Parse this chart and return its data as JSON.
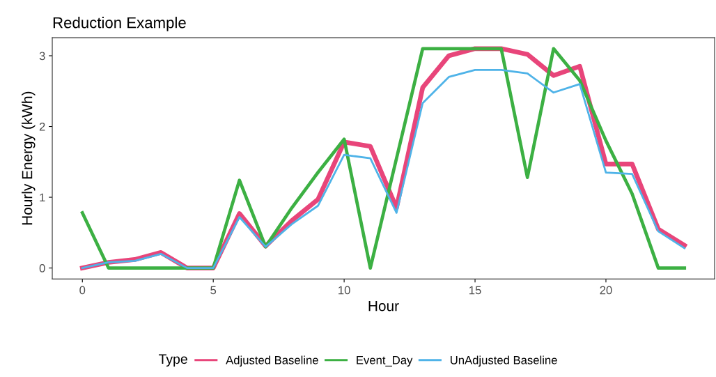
{
  "chart_data": {
    "type": "line",
    "title": "Reduction Example",
    "xlabel": "Hour",
    "ylabel": "Hourly Energy (kWh)",
    "legend_title": "Type",
    "x": [
      0,
      1,
      2,
      3,
      4,
      5,
      6,
      7,
      8,
      9,
      10,
      11,
      12,
      13,
      14,
      15,
      16,
      17,
      18,
      19,
      20,
      21,
      22,
      23
    ],
    "series": [
      {
        "name": "Adjusted Baseline",
        "color": "#e8457a",
        "values": [
          0,
          0.08,
          0.12,
          0.22,
          0,
          0,
          0.77,
          0.31,
          0.67,
          0.97,
          1.78,
          1.72,
          0.85,
          2.55,
          3.0,
          3.1,
          3.1,
          3.02,
          2.72,
          2.85,
          1.47,
          1.47,
          0.55,
          0.32
        ]
      },
      {
        "name": "Event_Day",
        "color": "#3cb043",
        "values": [
          0.78,
          0,
          0,
          0,
          0,
          0,
          1.24,
          0.3,
          0.85,
          1.35,
          1.82,
          0,
          1.55,
          3.1,
          3.1,
          3.1,
          3.1,
          1.28,
          3.1,
          2.65,
          1.8,
          1.05,
          0,
          0
        ]
      },
      {
        "name": "UnAdjusted Baseline",
        "color": "#4fb3e8",
        "values": [
          0,
          0.08,
          0.1,
          0.2,
          0,
          0,
          0.72,
          0.3,
          0.62,
          0.88,
          1.6,
          1.55,
          0.78,
          2.33,
          2.7,
          2.8,
          2.8,
          2.75,
          2.48,
          2.6,
          1.35,
          1.33,
          0.52,
          0.28
        ]
      }
    ],
    "xlim": [
      -1.15,
      24.15
    ],
    "ylim": [
      -0.155,
      3.255
    ],
    "xticks": [
      0,
      5,
      10,
      15,
      20
    ],
    "yticks": [
      0,
      1,
      2,
      3
    ],
    "grid": false,
    "legend": "bottom",
    "marker": "none",
    "line_style": "solid"
  }
}
